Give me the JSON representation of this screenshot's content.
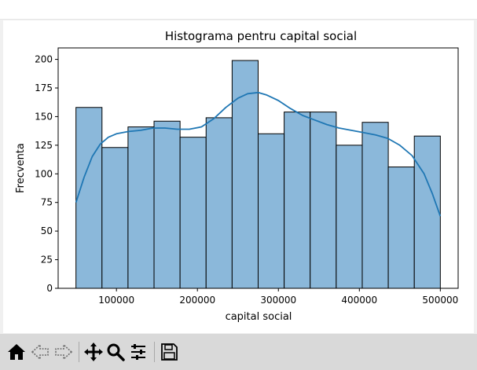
{
  "toolbar": {
    "buttons": [
      {
        "name": "home",
        "icon": "home-icon"
      },
      {
        "name": "back",
        "icon": "back-arrow-icon"
      },
      {
        "name": "forward",
        "icon": "forward-arrow-icon"
      },
      {
        "name": "pan",
        "icon": "move-icon"
      },
      {
        "name": "zoom",
        "icon": "zoom-icon"
      },
      {
        "name": "configure-subplots",
        "icon": "sliders-icon"
      },
      {
        "name": "save",
        "icon": "save-icon"
      }
    ]
  },
  "chart_data": {
    "type": "bar",
    "title": "Histograma pentru capital social",
    "xlabel": "capital social",
    "ylabel": "Frecventa",
    "xlim": [
      28000,
      522000
    ],
    "ylim": [
      0,
      210
    ],
    "xticks": [
      100000,
      200000,
      300000,
      400000,
      500000
    ],
    "xtick_labels": [
      "100000",
      "200000",
      "300000",
      "400000",
      "500000"
    ],
    "yticks": [
      0,
      25,
      50,
      75,
      100,
      125,
      150,
      175,
      200
    ],
    "ytick_labels": [
      "0",
      "25",
      "50",
      "75",
      "100",
      "125",
      "150",
      "175",
      "200"
    ],
    "bin_edges": [
      50000,
      82143,
      114286,
      146429,
      178571,
      210714,
      242857,
      275000,
      307143,
      339286,
      371429,
      403571,
      435714,
      467857,
      500000
    ],
    "values": [
      158,
      123,
      141,
      146,
      132,
      149,
      199,
      135,
      154,
      154,
      125,
      145,
      106,
      133
    ],
    "bar_color": "#8bb8da",
    "bar_edge": "#000000",
    "kde": {
      "color": "#1f77b4",
      "x": [
        50000,
        60000,
        70000,
        80000,
        90000,
        100000,
        115000,
        130000,
        145000,
        160000,
        175000,
        190000,
        205000,
        220000,
        235000,
        250000,
        262000,
        275000,
        285000,
        300000,
        315000,
        330000,
        345000,
        360000,
        375000,
        390000,
        405000,
        420000,
        435000,
        450000,
        465000,
        480000,
        490000,
        500000
      ],
      "y": [
        75,
        97,
        115,
        126,
        132,
        135,
        137,
        138,
        140,
        140,
        139,
        139,
        141,
        148,
        158,
        166,
        170,
        171,
        169,
        164,
        157,
        151,
        147,
        143,
        140,
        138,
        136,
        134,
        131,
        125,
        116,
        100,
        83,
        63
      ]
    },
    "grid": false,
    "legend": "none"
  }
}
